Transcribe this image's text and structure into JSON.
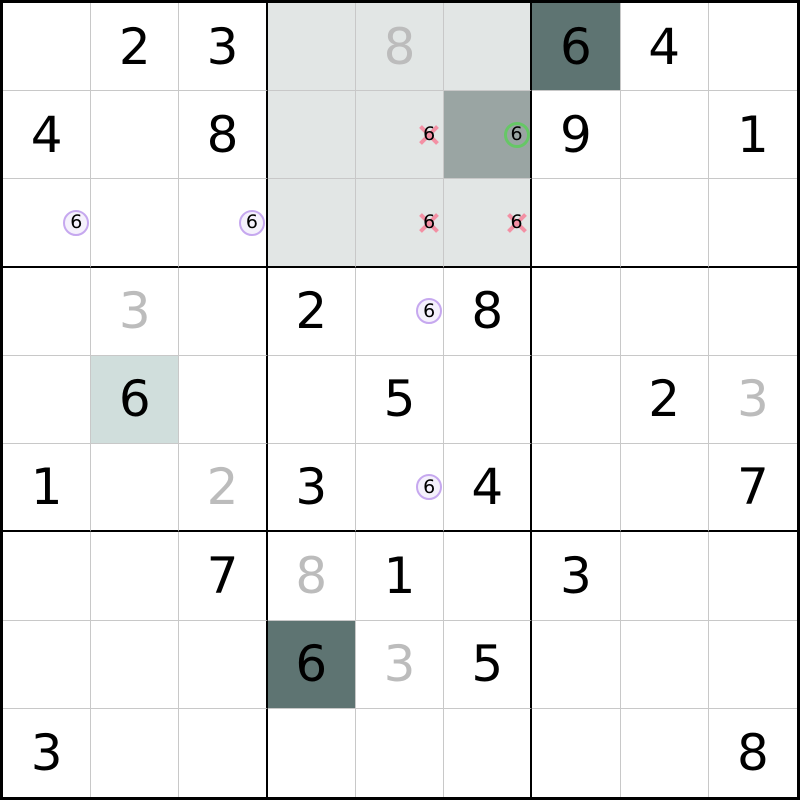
{
  "app": {
    "name": "sudoku-solver-grid",
    "highlight_digit": "6"
  },
  "board": {
    "rows": 9,
    "cols": 9,
    "colors": {
      "given_digit": "#000000",
      "solved_digit": "#bcbcbc",
      "box_highlight": "#e2e6e5",
      "step_cell": "#9aa5a3",
      "placed_digit_cell": "#5e7472",
      "chosen_cell": "#d0dedc",
      "grid_line": "#c8c8c8",
      "box_border": "#000000",
      "mark_purple": "#c6a8ef",
      "mark_green": "#66c766",
      "mark_pink": "#f390a4"
    },
    "highlighted_box": {
      "rows": "1-3",
      "cols": "4-6",
      "bg": "box"
    },
    "cells": [
      {
        "r": 0,
        "c": 1,
        "value": "2",
        "style": "given"
      },
      {
        "r": 0,
        "c": 2,
        "value": "3",
        "style": "given"
      },
      {
        "r": 0,
        "c": 3,
        "bg": "box"
      },
      {
        "r": 0,
        "c": 4,
        "value": "8",
        "style": "solved",
        "bg": "box"
      },
      {
        "r": 0,
        "c": 5,
        "bg": "box"
      },
      {
        "r": 0,
        "c": 6,
        "value": "6",
        "style": "given",
        "bg": "dark"
      },
      {
        "r": 0,
        "c": 7,
        "value": "4",
        "style": "given"
      },
      {
        "r": 1,
        "c": 0,
        "value": "4",
        "style": "given"
      },
      {
        "r": 1,
        "c": 2,
        "value": "8",
        "style": "given"
      },
      {
        "r": 1,
        "c": 3,
        "bg": "box"
      },
      {
        "r": 1,
        "c": 4,
        "candidate": "6",
        "mark": "pink-x",
        "bg": "box"
      },
      {
        "r": 1,
        "c": 5,
        "candidate": "6",
        "mark": "green-circle",
        "bg": "step"
      },
      {
        "r": 1,
        "c": 6,
        "value": "9",
        "style": "given"
      },
      {
        "r": 1,
        "c": 8,
        "value": "1",
        "style": "given"
      },
      {
        "r": 2,
        "c": 0,
        "candidate": "6",
        "mark": "purple-circle"
      },
      {
        "r": 2,
        "c": 2,
        "candidate": "6",
        "mark": "purple-circle"
      },
      {
        "r": 2,
        "c": 3,
        "bg": "box"
      },
      {
        "r": 2,
        "c": 4,
        "candidate": "6",
        "mark": "pink-x",
        "bg": "box"
      },
      {
        "r": 2,
        "c": 5,
        "candidate": "6",
        "mark": "pink-x",
        "bg": "box"
      },
      {
        "r": 3,
        "c": 1,
        "value": "3",
        "style": "solved"
      },
      {
        "r": 3,
        "c": 3,
        "value": "2",
        "style": "given"
      },
      {
        "r": 3,
        "c": 4,
        "candidate": "6",
        "mark": "purple-circle"
      },
      {
        "r": 3,
        "c": 5,
        "value": "8",
        "style": "given"
      },
      {
        "r": 4,
        "c": 1,
        "value": "6",
        "style": "given",
        "bg": "chosen"
      },
      {
        "r": 4,
        "c": 4,
        "value": "5",
        "style": "given"
      },
      {
        "r": 4,
        "c": 7,
        "value": "2",
        "style": "given"
      },
      {
        "r": 4,
        "c": 8,
        "value": "3",
        "style": "solved"
      },
      {
        "r": 5,
        "c": 0,
        "value": "1",
        "style": "given"
      },
      {
        "r": 5,
        "c": 2,
        "value": "2",
        "style": "solved"
      },
      {
        "r": 5,
        "c": 3,
        "value": "3",
        "style": "given"
      },
      {
        "r": 5,
        "c": 4,
        "candidate": "6",
        "mark": "purple-circle"
      },
      {
        "r": 5,
        "c": 5,
        "value": "4",
        "style": "given"
      },
      {
        "r": 5,
        "c": 8,
        "value": "7",
        "style": "given"
      },
      {
        "r": 6,
        "c": 2,
        "value": "7",
        "style": "given"
      },
      {
        "r": 6,
        "c": 3,
        "value": "8",
        "style": "solved"
      },
      {
        "r": 6,
        "c": 4,
        "value": "1",
        "style": "given"
      },
      {
        "r": 6,
        "c": 6,
        "value": "3",
        "style": "given"
      },
      {
        "r": 7,
        "c": 3,
        "value": "6",
        "style": "given",
        "bg": "dark"
      },
      {
        "r": 7,
        "c": 4,
        "value": "3",
        "style": "solved"
      },
      {
        "r": 7,
        "c": 5,
        "value": "5",
        "style": "given"
      },
      {
        "r": 8,
        "c": 0,
        "value": "3",
        "style": "given"
      },
      {
        "r": 8,
        "c": 8,
        "value": "8",
        "style": "given"
      }
    ]
  }
}
